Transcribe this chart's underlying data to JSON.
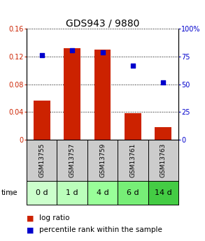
{
  "title": "GDS943 / 9880",
  "samples": [
    "GSM13755",
    "GSM13757",
    "GSM13759",
    "GSM13761",
    "GSM13763"
  ],
  "time_labels": [
    "0 d",
    "1 d",
    "4 d",
    "6 d",
    "14 d"
  ],
  "log_ratio": [
    0.057,
    0.132,
    0.13,
    0.038,
    0.018
  ],
  "percentile_rank": [
    0.76,
    0.81,
    0.79,
    0.67,
    0.52
  ],
  "bar_color": "#cc2200",
  "dot_color": "#0000cc",
  "ylim_left": [
    0,
    0.16
  ],
  "ylim_right": [
    0,
    1.0
  ],
  "yticks_left": [
    0,
    0.04,
    0.08,
    0.12,
    0.16
  ],
  "ytick_labels_left": [
    "0",
    "0.04",
    "0.08",
    "0.12",
    "0.16"
  ],
  "yticks_right": [
    0,
    0.25,
    0.5,
    0.75,
    1.0
  ],
  "ytick_labels_right": [
    "0",
    "25",
    "50",
    "75",
    "100%"
  ],
  "plot_bg": "#ffffff",
  "gsm_bg": "#cccccc",
  "time_bg_colors": [
    "#ccffcc",
    "#bbffbb",
    "#99ff99",
    "#77ee77",
    "#44cc44"
  ],
  "bar_width": 0.55,
  "title_fontsize": 10,
  "tick_fontsize": 7,
  "gsm_fontsize": 6.5,
  "time_fontsize": 8,
  "legend_fontsize": 7.5
}
